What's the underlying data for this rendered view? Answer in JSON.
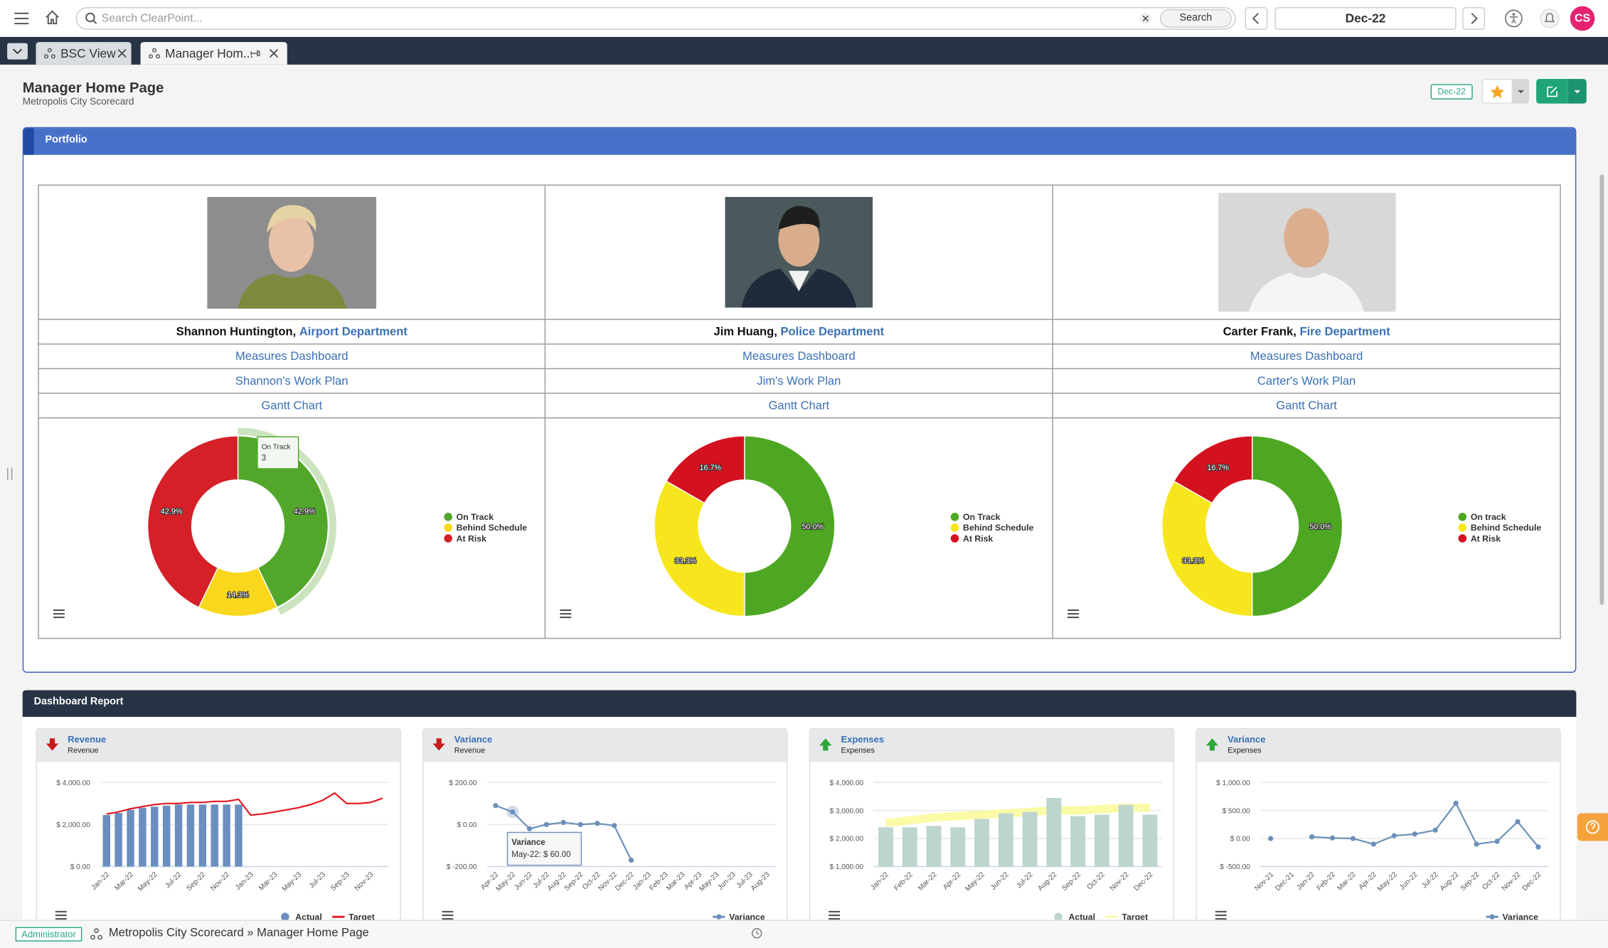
{
  "topbar": {
    "search_placeholder": "Search ClearPoint...",
    "search_button": "Search",
    "period": "Dec-22",
    "avatar": "CS"
  },
  "tabs": [
    {
      "label": "BSC View"
    },
    {
      "label": "Manager Hom..."
    }
  ],
  "header": {
    "title": "Manager Home Page",
    "subtitle": "Metropolis City Scorecard",
    "period_badge": "Dec-22"
  },
  "portfolio": {
    "title": "Portfolio",
    "managers": [
      {
        "name": "Shannon Huntington,",
        "department": "Airport Department",
        "links": [
          "Measures Dashboard",
          "Shannon's Work Plan",
          "Gantt Chart"
        ],
        "chart": {
          "type": "pie",
          "categories": [
            "On Track",
            "Behind Schedule",
            "At Risk"
          ],
          "values": [
            42.9,
            14.3,
            42.9
          ],
          "value_labels": [
            "42.9%",
            "14.3%",
            "42.9%"
          ],
          "colors": [
            "#52a72b",
            "#f9d71c",
            "#d52027"
          ],
          "tooltip": {
            "label": "On Track",
            "value": 3
          }
        }
      },
      {
        "name": "Jim Huang,",
        "department": "Police Department",
        "links": [
          "Measures Dashboard",
          "Jim's Work Plan",
          "Gantt Chart"
        ],
        "chart": {
          "type": "pie",
          "categories": [
            "On Track",
            "Behind Schedule",
            "At Risk"
          ],
          "values": [
            50.0,
            33.3,
            16.7
          ],
          "value_labels": [
            "50.0%",
            "33.3%",
            "16.7%"
          ],
          "colors": [
            "#4ea723",
            "#f7e61d",
            "#d3111f"
          ]
        }
      },
      {
        "name": "Carter Frank,",
        "department": "Fire Department",
        "links": [
          "Measures Dashboard",
          "Carter's Work Plan",
          "Gantt Chart"
        ],
        "chart": {
          "type": "pie",
          "categories": [
            "On track",
            "Behind Schedule",
            "At Risk"
          ],
          "values": [
            50.0,
            33.3,
            16.7
          ],
          "value_labels": [
            "50.0%",
            "33.3%",
            "16.7%"
          ],
          "colors": [
            "#4ea723",
            "#f7e61d",
            "#d3111f"
          ]
        }
      }
    ]
  },
  "dashboard": {
    "title": "Dashboard Report",
    "cards": [
      {
        "title": "Revenue",
        "subtitle": "Revenue",
        "trend": "down",
        "chart": {
          "type": "combo",
          "categories": [
            "Jan-22",
            null,
            "Mar-22",
            null,
            "May-22",
            null,
            "Jul-22",
            null,
            "Sep-22",
            null,
            "Nov-22",
            null,
            "Jan-23",
            null,
            "Mar-23",
            null,
            "May-23",
            null,
            "Jul-23",
            null,
            "Sep-23",
            null,
            "Nov-23",
            null
          ],
          "series": [
            {
              "name": "Actual",
              "kind": "bar",
              "color": "#6a8fbf",
              "values": [
                2450,
                2550,
                2700,
                2800,
                2850,
                2900,
                2950,
                2950,
                2950,
                2950,
                2950,
                2950,
                null,
                null,
                null,
                null,
                null,
                null,
                null,
                null,
                null,
                null,
                null,
                null
              ]
            },
            {
              "name": "Target",
              "kind": "line",
              "color": "#e3171f",
              "values": [
                2500,
                2600,
                2750,
                2850,
                2950,
                3000,
                3000,
                3050,
                3050,
                3100,
                3100,
                3200,
                2450,
                2500,
                2600,
                2700,
                2800,
                2950,
                3150,
                3500,
                3000,
                3000,
                3050,
                3250
              ]
            }
          ],
          "ylim": [
            0,
            4000
          ],
          "yticks": [
            {
              "value": 0,
              "label": "$ 0.00"
            },
            {
              "value": 2000,
              "label": "$ 2,000.00"
            },
            {
              "value": 4000,
              "label": "$ 4,000.00"
            }
          ],
          "grid": true
        }
      },
      {
        "title": "Variance",
        "subtitle": "Revenue",
        "trend": "down",
        "chart": {
          "type": "line",
          "categories": [
            "Apr-22",
            "May-22",
            "Jun-22",
            "Jul-22",
            "Aug-22",
            "Sep-22",
            "Oct-22",
            "Nov-22",
            "Dec-22",
            "Jan-23",
            "Feb-23",
            "Mar-23",
            "Apr-23",
            "May-23",
            "Jun-23",
            "Jul-23",
            "Aug-23"
          ],
          "series": [
            {
              "name": "Variance",
              "color": "#6b8fb8",
              "values": [
                90,
                60,
                -20,
                0,
                10,
                0,
                5,
                -5,
                -170,
                null,
                null,
                null,
                null,
                null,
                null,
                null,
                null
              ]
            }
          ],
          "ylim": [
            -200,
            200
          ],
          "yticks": [
            {
              "value": -200,
              "label": "$ -200.00"
            },
            {
              "value": 0,
              "label": "$ 0.00"
            },
            {
              "value": 200,
              "label": "$ 200.00"
            }
          ],
          "grid": true,
          "tooltip": {
            "title": "Variance",
            "text": "May-22: $ 60.00",
            "index": 1
          }
        }
      },
      {
        "title": "Expenses",
        "subtitle": "Expenses",
        "trend": "up",
        "chart": {
          "type": "combo",
          "categories": [
            "Jan-22",
            "Feb-22",
            "Mar-22",
            "Apr-22",
            "May-22",
            "Jun-22",
            "Jul-22",
            "Aug-22",
            "Sep-22",
            "Oct-22",
            "Nov-22",
            "Dec-22"
          ],
          "series": [
            {
              "name": "Target",
              "kind": "line",
              "color": "#fbfaa6",
              "values": [
                2550,
                2650,
                2750,
                2800,
                2850,
                2900,
                2950,
                3000,
                3000,
                3050,
                3100,
                3100
              ]
            },
            {
              "name": "Actual",
              "kind": "bar",
              "color": "#bdd5cf",
              "values": [
                2400,
                2400,
                2450,
                2400,
                2700,
                2900,
                2950,
                3450,
                2800,
                2850,
                3200,
                2850
              ]
            }
          ],
          "ylim": [
            1000,
            4000
          ],
          "yticks": [
            {
              "value": 1000,
              "label": "$ 1,000.00"
            },
            {
              "value": 2000,
              "label": "$ 2,000.00"
            },
            {
              "value": 3000,
              "label": "$ 3,000.00"
            },
            {
              "value": 4000,
              "label": "$ 4,000.00"
            }
          ],
          "grid": true
        }
      },
      {
        "title": "Variance",
        "subtitle": "Expenses",
        "trend": "up",
        "chart": {
          "type": "line",
          "categories": [
            "Nov-21",
            "Dec-21",
            "Jan-22",
            "Feb-22",
            "Mar-22",
            "Apr-22",
            "May-22",
            "Jun-22",
            "Jul-22",
            "Aug-22",
            "Sep-22",
            "Oct-22",
            "Nov-22",
            "Dec-22"
          ],
          "series": [
            {
              "name": "Variance",
              "color": "#6b8fb8",
              "values": [
                0,
                null,
                30,
                10,
                0,
                -100,
                50,
                80,
                150,
                630,
                -100,
                -50,
                300,
                -150
              ]
            }
          ],
          "ylim": [
            -500,
            1000
          ],
          "yticks": [
            {
              "value": -500,
              "label": "$ -500.00"
            },
            {
              "value": 0,
              "label": "$ 0.00"
            },
            {
              "value": 500,
              "label": "$ 500.00"
            },
            {
              "value": 1000,
              "label": "$ 1,000.00"
            }
          ],
          "grid": true
        }
      }
    ]
  },
  "footer": {
    "role": "Administrator",
    "breadcrumb": "Metropolis City Scorecard » Manager Home Page"
  }
}
